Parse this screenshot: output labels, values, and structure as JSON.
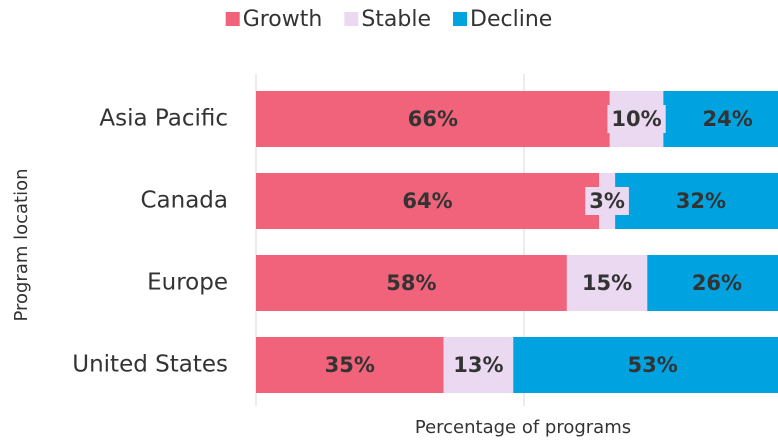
{
  "chart_data": {
    "type": "bar",
    "orientation": "horizontal",
    "stacked": true,
    "xlabel": "Percentage of programs",
    "ylabel": "Program location",
    "categories": [
      "Asia Pacific",
      "Canada",
      "Europe",
      "United States"
    ],
    "series": [
      {
        "name": "Growth",
        "color": "#f0637a",
        "values": [
          66,
          64,
          58,
          35
        ],
        "value_labels": [
          "66%",
          "64%",
          "58%",
          "35%"
        ]
      },
      {
        "name": "Stable",
        "color": "#ead9f0",
        "values": [
          10,
          3,
          15,
          13
        ],
        "value_labels": [
          "10%",
          "3%",
          "15%",
          "13%"
        ]
      },
      {
        "name": "Decline",
        "color": "#00a3e0",
        "values": [
          24,
          32,
          26,
          53
        ],
        "value_labels": [
          "24%",
          "32%",
          "26%",
          "53%"
        ]
      }
    ],
    "xlim": [
      0,
      100
    ],
    "xticks": [
      0,
      50,
      100
    ],
    "grid": true,
    "legend": "top"
  }
}
